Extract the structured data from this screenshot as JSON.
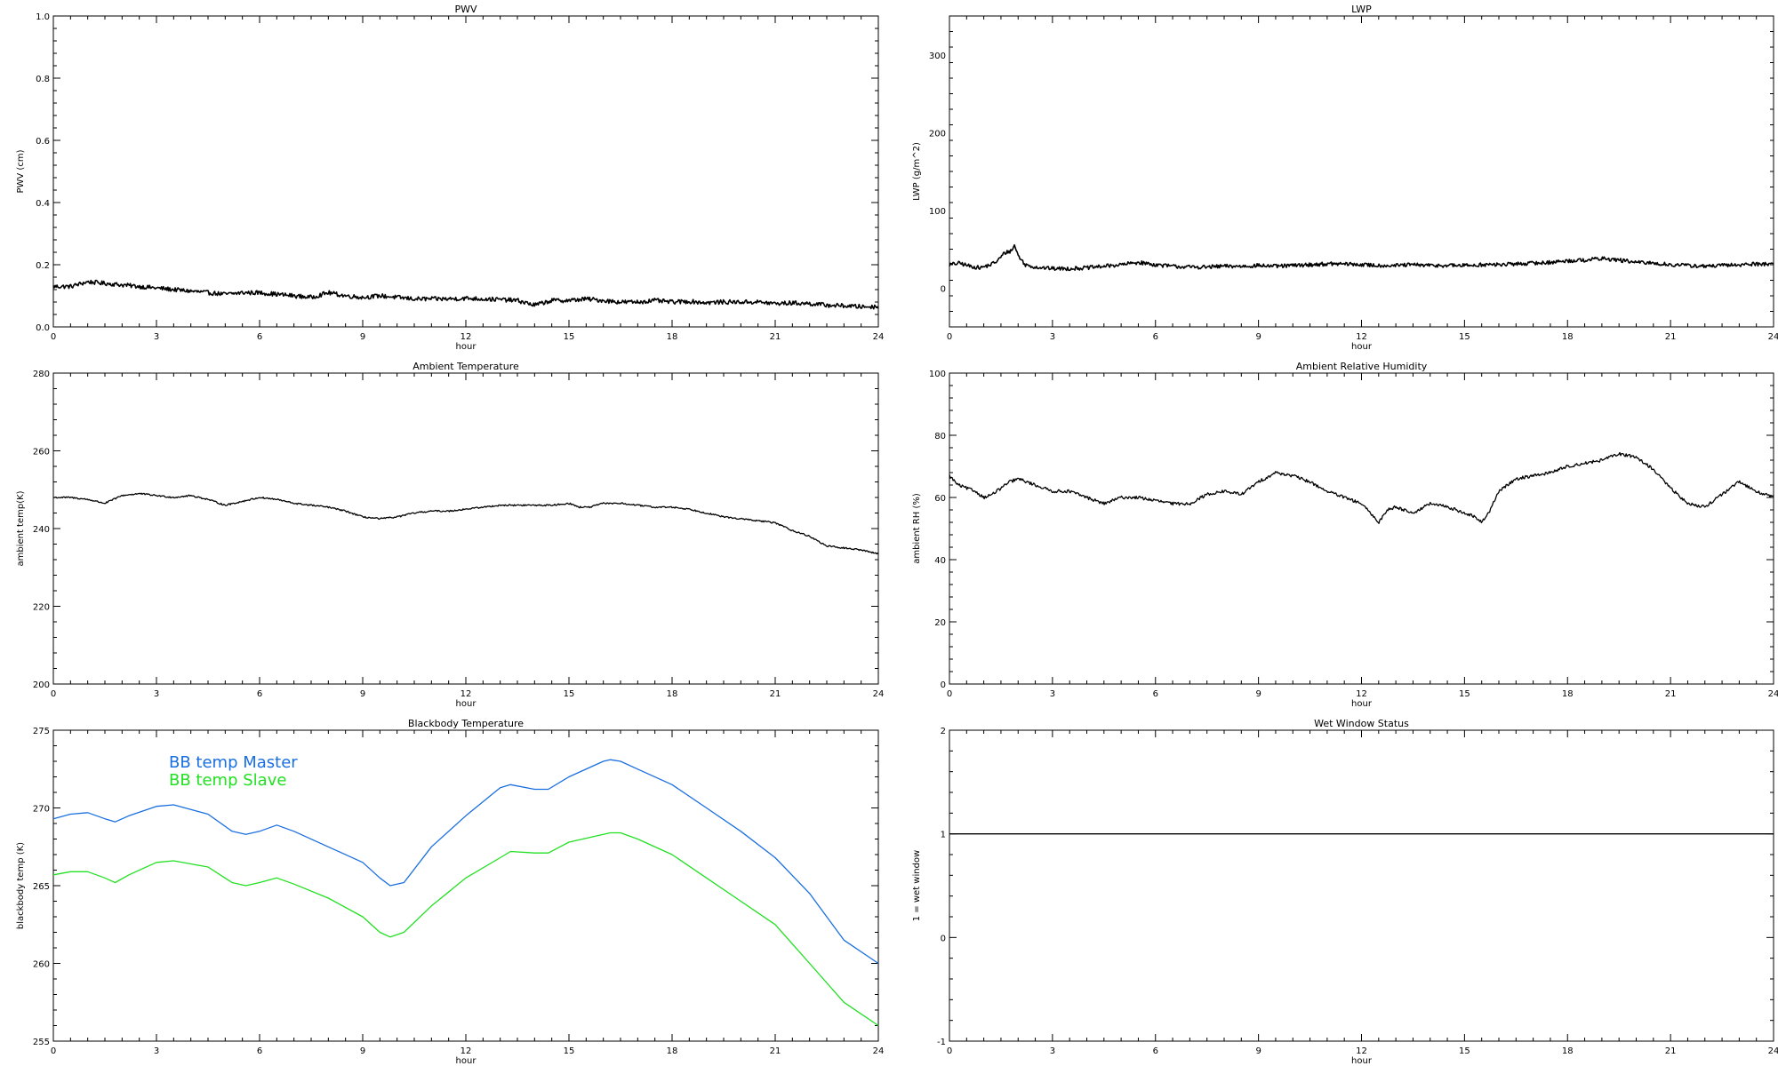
{
  "chart_data": [
    {
      "type": "line",
      "title": "PWV",
      "xlabel": "hour",
      "ylabel": "PWV (cm)",
      "xlim": [
        0,
        24
      ],
      "ylim": [
        0.0,
        1.0
      ],
      "xticks": [
        0,
        3,
        6,
        9,
        12,
        15,
        18,
        21,
        24
      ],
      "yticks": [
        0.0,
        0.2,
        0.4,
        0.6,
        0.8,
        1.0
      ],
      "ytick_labels": [
        "0.0",
        "0.2",
        "0.4",
        "0.6",
        "0.8",
        "1.0"
      ],
      "noise": 0.007,
      "series": [
        {
          "color": "#000000",
          "x": [
            0,
            0.5,
            1,
            1.5,
            2,
            2.5,
            3,
            3.5,
            4,
            4.5,
            5,
            5.5,
            6,
            6.5,
            7,
            7.5,
            8,
            8.5,
            9,
            9.5,
            10,
            10.5,
            11,
            11.5,
            12,
            12.5,
            13,
            13.5,
            14,
            14.5,
            15,
            15.5,
            16,
            16.5,
            17,
            17.5,
            18,
            18.5,
            19,
            19.5,
            20,
            20.5,
            21,
            21.5,
            22,
            22.5,
            23,
            23.5,
            24
          ],
          "y": [
            0.13,
            0.13,
            0.145,
            0.14,
            0.135,
            0.13,
            0.125,
            0.12,
            0.115,
            0.11,
            0.105,
            0.11,
            0.11,
            0.105,
            0.1,
            0.095,
            0.11,
            0.1,
            0.095,
            0.1,
            0.095,
            0.09,
            0.09,
            0.09,
            0.092,
            0.09,
            0.088,
            0.085,
            0.07,
            0.085,
            0.085,
            0.09,
            0.085,
            0.08,
            0.08,
            0.085,
            0.08,
            0.082,
            0.078,
            0.08,
            0.08,
            0.08,
            0.075,
            0.077,
            0.075,
            0.07,
            0.068,
            0.065,
            0.065
          ]
        }
      ]
    },
    {
      "type": "line",
      "title": "LWP",
      "xlabel": "hour",
      "ylabel": "LWP (g/m^2)",
      "xlim": [
        0,
        24
      ],
      "ylim": [
        -50,
        350
      ],
      "xticks": [
        0,
        3,
        6,
        9,
        12,
        15,
        18,
        21,
        24
      ],
      "yticks": [
        0,
        100,
        200,
        300
      ],
      "ytick_labels": [
        "0",
        "100",
        "200",
        "300"
      ],
      "noise": 2.5,
      "series": [
        {
          "color": "#000000",
          "x": [
            0,
            0.3,
            0.6,
            0.9,
            1.2,
            1.4,
            1.6,
            1.8,
            1.9,
            2.0,
            2.2,
            2.5,
            3,
            3.5,
            4,
            4.5,
            5,
            5.5,
            6,
            6.5,
            7,
            7.5,
            8,
            8.5,
            9,
            9.5,
            10,
            10.5,
            11,
            11.5,
            12,
            12.5,
            13,
            13.5,
            14,
            14.5,
            15,
            15.5,
            16,
            16.5,
            17,
            17.5,
            18,
            18.5,
            19,
            19.5,
            20,
            20.5,
            21,
            21.5,
            22,
            22.5,
            23,
            23.5,
            24
          ],
          "y": [
            30,
            32,
            28,
            26,
            30,
            35,
            45,
            48,
            55,
            42,
            30,
            27,
            25,
            25,
            26,
            28,
            30,
            33,
            30,
            28,
            27,
            27,
            28,
            28,
            29,
            28,
            29,
            30,
            31,
            31,
            30,
            29,
            29,
            30,
            29,
            29,
            29,
            30,
            30,
            31,
            32,
            33,
            35,
            36,
            38,
            36,
            33,
            32,
            30,
            29,
            28,
            29,
            30,
            31,
            31
          ]
        }
      ]
    },
    {
      "type": "line",
      "title": "Ambient Temperature",
      "xlabel": "hour",
      "ylabel": "ambient temp(K)",
      "xlim": [
        0,
        24
      ],
      "ylim": [
        200,
        280
      ],
      "xticks": [
        0,
        3,
        6,
        9,
        12,
        15,
        18,
        21,
        24
      ],
      "yticks": [
        200,
        220,
        240,
        260,
        280
      ],
      "ytick_labels": [
        "200",
        "220",
        "240",
        "260",
        "280"
      ],
      "noise": 0.2,
      "series": [
        {
          "color": "#000000",
          "x": [
            0,
            0.5,
            1,
            1.5,
            2,
            2.5,
            3,
            3.5,
            4,
            4.5,
            5,
            5.5,
            6,
            6.5,
            7,
            7.5,
            8,
            8.5,
            9,
            9.5,
            10,
            10.5,
            11,
            11.5,
            12,
            12.5,
            13,
            13.5,
            14,
            14.5,
            15,
            15.3,
            15.6,
            16,
            16.5,
            17,
            17.5,
            18,
            18.5,
            19,
            19.5,
            20,
            20.5,
            21,
            21.5,
            22,
            22.5,
            23,
            23.5,
            24
          ],
          "y": [
            248,
            248,
            247.5,
            246.5,
            248.5,
            249,
            248.5,
            248,
            248.5,
            247.5,
            246,
            247,
            248,
            247.5,
            246.5,
            246,
            245.5,
            244.5,
            243,
            242.5,
            243,
            244,
            244.5,
            244.5,
            245,
            245.5,
            246,
            246,
            246,
            246,
            246.5,
            245.5,
            245.5,
            246.5,
            246.5,
            246,
            245.5,
            245.5,
            245,
            244,
            243,
            242.5,
            242,
            241.5,
            239.5,
            238,
            235.5,
            235,
            234.5,
            233.5
          ]
        }
      ]
    },
    {
      "type": "line",
      "title": "Ambient Relative Humidity",
      "xlabel": "hour",
      "ylabel": "ambient RH (%)",
      "xlim": [
        0,
        24
      ],
      "ylim": [
        0,
        100
      ],
      "xticks": [
        0,
        3,
        6,
        9,
        12,
        15,
        18,
        21,
        24
      ],
      "yticks": [
        0,
        20,
        40,
        60,
        80,
        100
      ],
      "ytick_labels": [
        "0",
        "20",
        "40",
        "60",
        "80",
        "100"
      ],
      "noise": 0.5,
      "series": [
        {
          "color": "#000000",
          "x": [
            0,
            0.25,
            0.5,
            0.75,
            1,
            1.25,
            1.5,
            1.75,
            2,
            2.5,
            3,
            3.5,
            4,
            4.5,
            5,
            5.5,
            6,
            6.5,
            7,
            7.5,
            8,
            8.5,
            9,
            9.5,
            10,
            10.5,
            11,
            11.5,
            12,
            12.25,
            12.5,
            12.75,
            13,
            13.5,
            14,
            14.5,
            15,
            15.25,
            15.5,
            15.75,
            16,
            16.5,
            17,
            17.5,
            18,
            18.5,
            19,
            19.5,
            20,
            20.5,
            21,
            21.5,
            22,
            22.5,
            23,
            23.5,
            24
          ],
          "y": [
            67,
            64,
            63,
            62,
            60,
            61,
            63,
            65,
            66,
            64,
            62,
            62,
            60,
            58,
            60,
            60,
            59,
            58,
            58,
            61,
            62,
            61,
            65,
            68,
            67,
            65,
            62,
            60,
            58,
            55,
            52,
            56,
            57,
            55,
            58,
            57,
            55,
            54,
            52,
            56,
            62,
            66,
            67,
            68,
            70,
            71,
            72,
            74,
            73,
            69,
            63,
            58,
            57,
            61,
            65,
            62,
            60
          ]
        }
      ]
    },
    {
      "type": "line",
      "title": "Blackbody Temperature",
      "xlabel": "hour",
      "ylabel": "blackbody temp (K)",
      "xlim": [
        0,
        24
      ],
      "ylim": [
        255,
        275
      ],
      "xticks": [
        0,
        3,
        6,
        9,
        12,
        15,
        18,
        21,
        24
      ],
      "yticks": [
        255,
        260,
        265,
        270,
        275
      ],
      "ytick_labels": [
        "255",
        "260",
        "265",
        "270",
        "275"
      ],
      "noise": 0,
      "legend": {
        "placement": "top-left"
      },
      "series": [
        {
          "name": "BB temp Master",
          "color": "#1a6fe0",
          "x": [
            0,
            0.5,
            1,
            1.5,
            1.8,
            2.2,
            3,
            3.5,
            4.5,
            5.2,
            5.6,
            6,
            6.5,
            7,
            8,
            9,
            9.5,
            9.8,
            10.2,
            11,
            12,
            13,
            13.3,
            14,
            14.4,
            15,
            16,
            16.2,
            16.5,
            17,
            18,
            19,
            20,
            21,
            22,
            23,
            24
          ],
          "y": [
            269.3,
            269.6,
            269.7,
            269.3,
            269.1,
            269.5,
            270.1,
            270.2,
            269.6,
            268.5,
            268.3,
            268.5,
            268.9,
            268.5,
            267.5,
            266.5,
            265.5,
            265.0,
            265.2,
            267.5,
            269.5,
            271.3,
            271.5,
            271.2,
            271.2,
            272.0,
            273.0,
            273.1,
            273.0,
            272.5,
            271.5,
            270.0,
            268.5,
            266.8,
            264.5,
            261.5,
            260.0
          ]
        },
        {
          "name": "BB temp Slave",
          "color": "#22e022",
          "x": [
            0,
            0.5,
            1,
            1.5,
            1.8,
            2.2,
            3,
            3.5,
            4.5,
            5.2,
            5.6,
            6,
            6.5,
            7,
            8,
            9,
            9.5,
            9.8,
            10.2,
            11,
            12,
            13,
            13.3,
            14,
            14.4,
            15,
            16,
            16.2,
            16.5,
            17,
            18,
            19,
            20,
            21,
            22,
            23,
            24
          ],
          "y": [
            265.7,
            265.9,
            265.9,
            265.5,
            265.2,
            265.7,
            266.5,
            266.6,
            266.2,
            265.2,
            265.0,
            265.2,
            265.5,
            265.1,
            264.2,
            263.0,
            262.0,
            261.7,
            262.0,
            263.7,
            265.5,
            266.8,
            267.2,
            267.1,
            267.1,
            267.8,
            268.3,
            268.4,
            268.4,
            268.0,
            267.0,
            265.5,
            264.0,
            262.5,
            260.0,
            257.5,
            256.0
          ]
        }
      ]
    },
    {
      "type": "line",
      "title": "Wet Window Status",
      "xlabel": "hour",
      "ylabel": "1 = wet window",
      "xlim": [
        0,
        24
      ],
      "ylim": [
        -1,
        2
      ],
      "xticks": [
        0,
        3,
        6,
        9,
        12,
        15,
        18,
        21,
        24
      ],
      "yticks": [
        -1,
        0,
        1,
        2
      ],
      "ytick_labels": [
        "-1",
        "0",
        "1",
        "2"
      ],
      "noise": 0,
      "series": [
        {
          "color": "#000000",
          "x": [
            0,
            24
          ],
          "y": [
            1,
            1
          ]
        }
      ]
    }
  ]
}
